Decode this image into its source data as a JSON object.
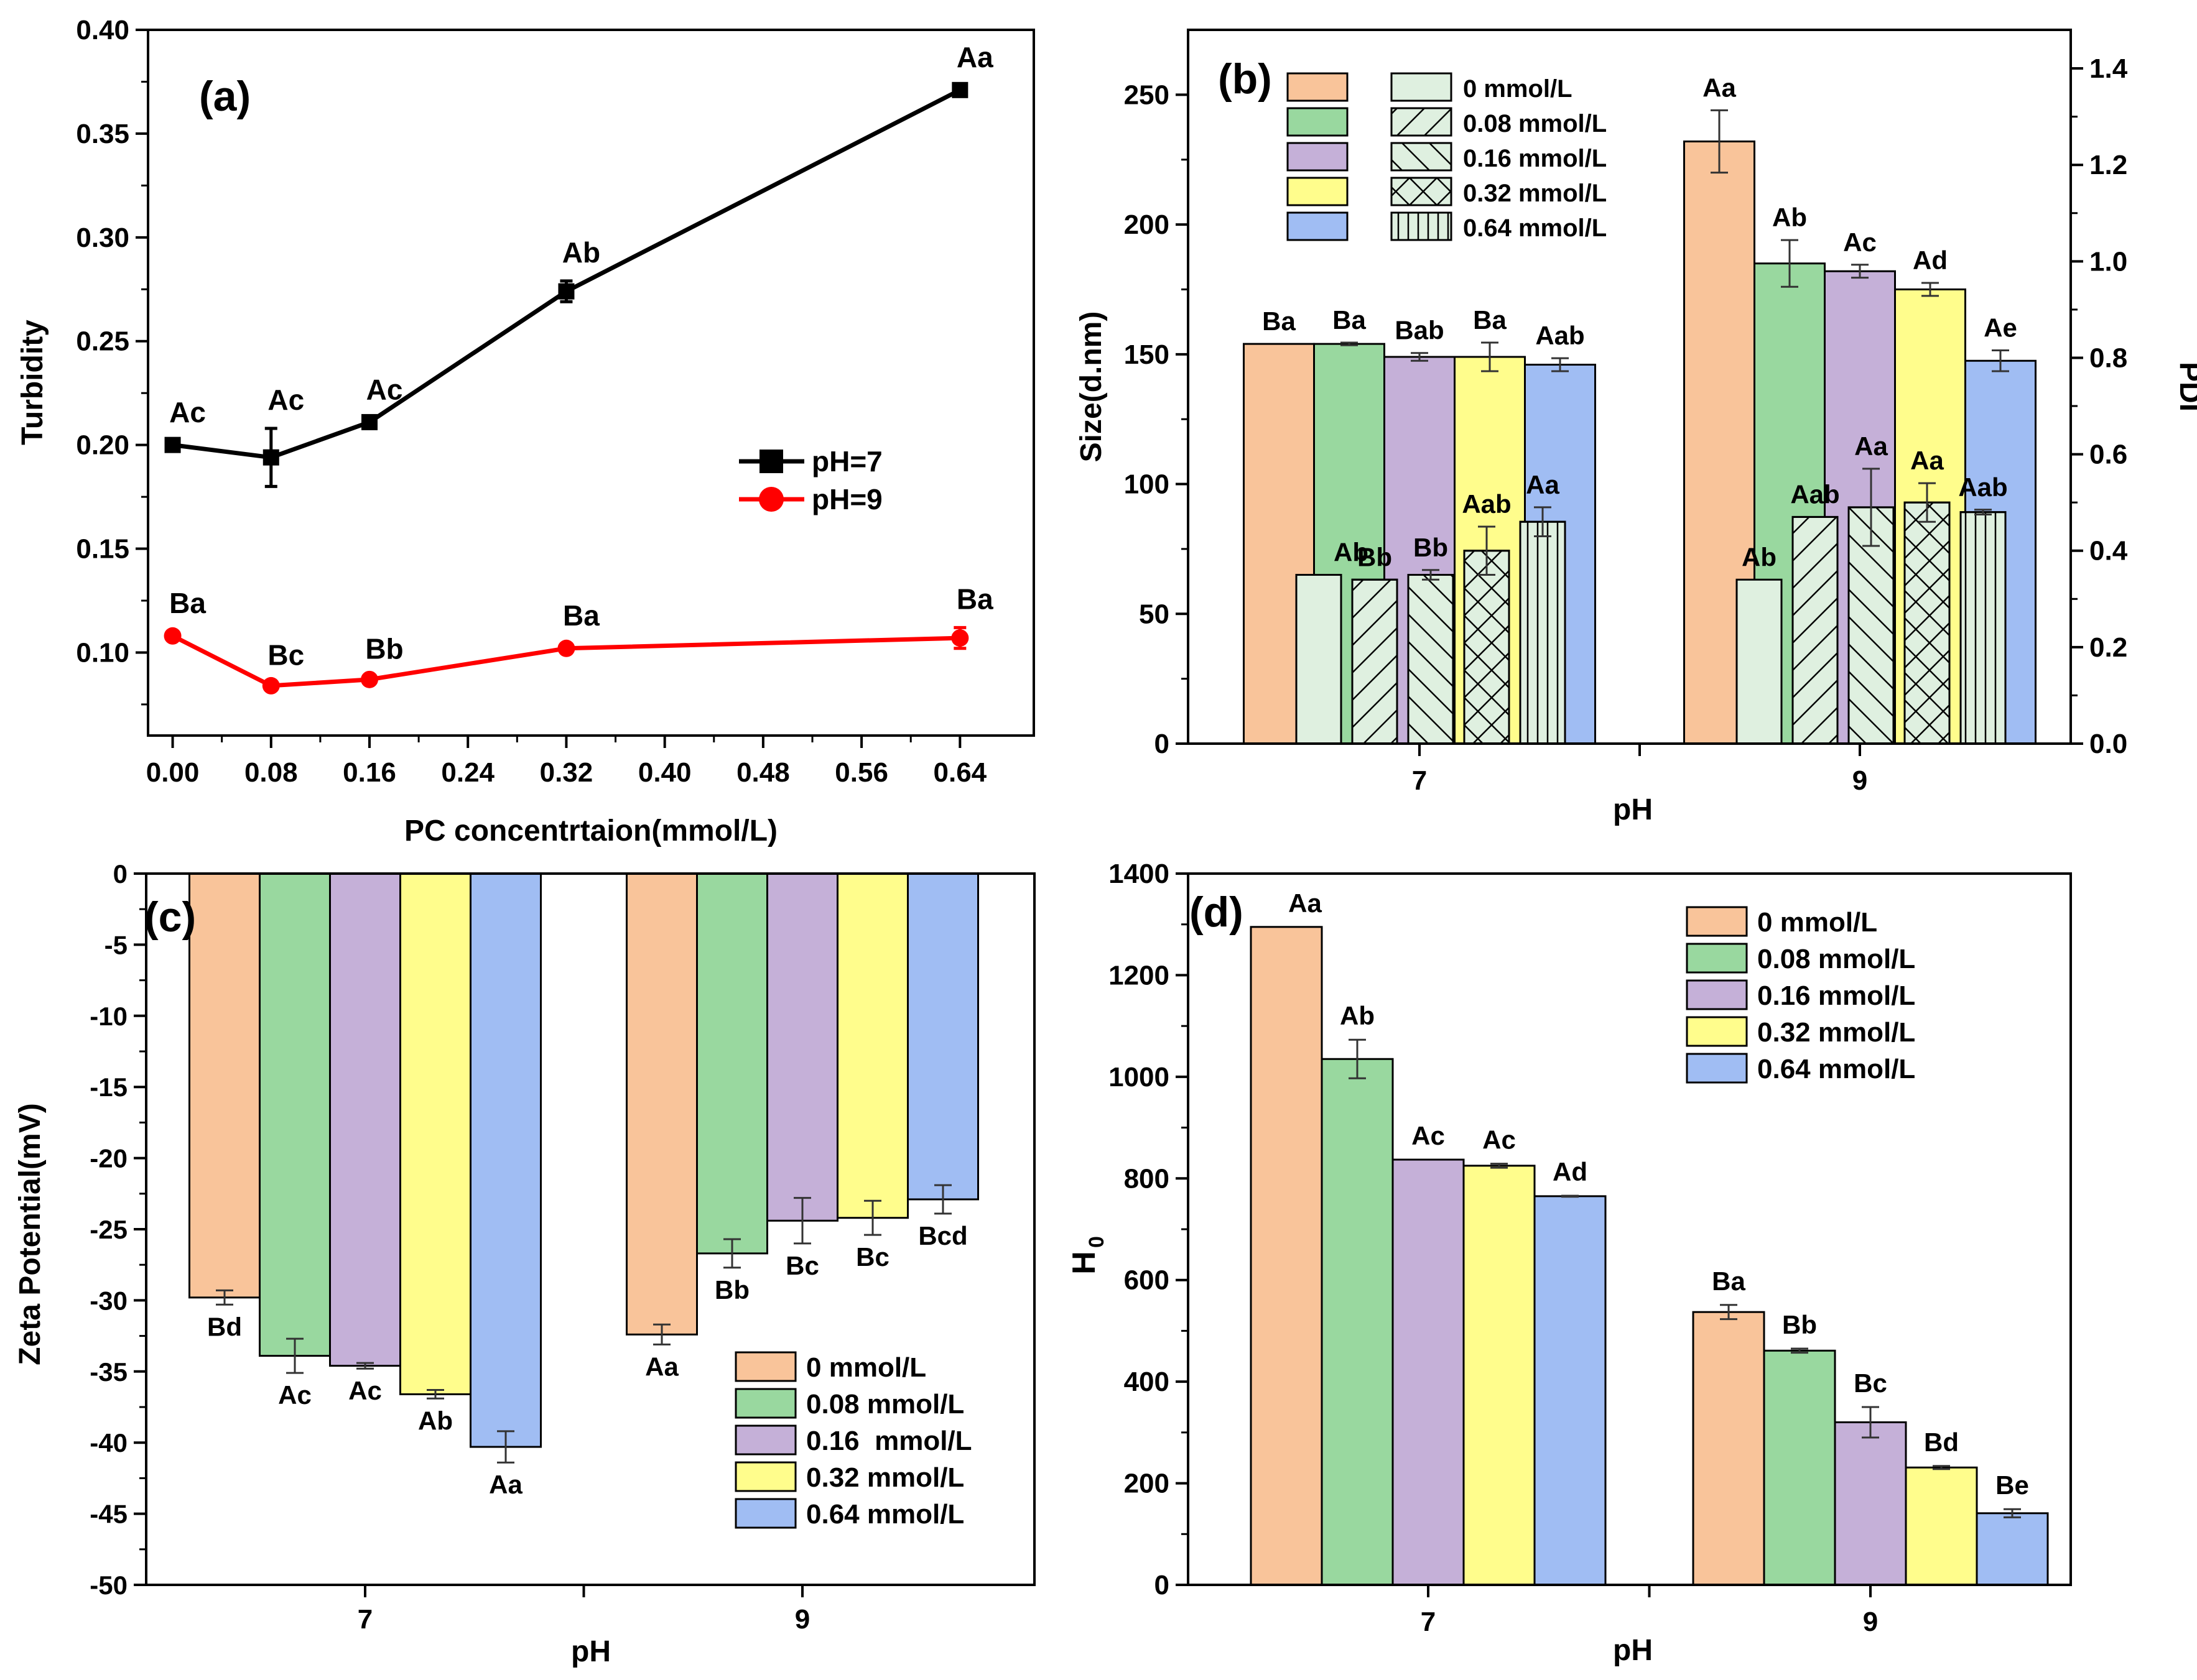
{
  "colors": {
    "axis": "#000000",
    "error": "#333333",
    "ph7_line": "#000000",
    "ph9_line": "#ff0000",
    "bar_0": "#f9c49a",
    "bar_008": "#99d89f",
    "bar_016": "#c5b0d8",
    "bar_032": "#fffd8c",
    "bar_064": "#a0bdf3",
    "pdi_fill": "#dff0e0"
  },
  "chart_data": [
    {
      "id": "a",
      "type": "line",
      "panel_label": "(a)",
      "xlabel": "PC concentrtaion(mmol/L)",
      "ylabel": "Turbidity",
      "xlim": [
        -0.02,
        0.7
      ],
      "ylim": [
        0.06,
        0.4
      ],
      "xticks": [
        "0.00",
        "0.08",
        "0.16",
        "0.24",
        "0.32",
        "0.40",
        "0.48",
        "0.56",
        "0.64"
      ],
      "yticks": [
        "0.10",
        "0.15",
        "0.20",
        "0.25",
        "0.30",
        "0.35",
        "0.40"
      ],
      "series": [
        {
          "name": "pH=7",
          "x": [
            0,
            0.08,
            0.16,
            0.32,
            0.64
          ],
          "values": [
            0.2,
            0.194,
            0.211,
            0.274,
            0.371
          ],
          "errors": [
            0.002,
            0.014,
            0.002,
            0.005,
            0.002
          ],
          "letters": [
            "Ac",
            "Ac",
            "Ac",
            "Ab",
            "Aa"
          ]
        },
        {
          "name": "pH=9",
          "x": [
            0,
            0.08,
            0.16,
            0.32,
            0.64
          ],
          "values": [
            0.108,
            0.084,
            0.087,
            0.102,
            0.107
          ],
          "errors": [
            0.002,
            0.001,
            0.001,
            0.002,
            0.005
          ],
          "letters": [
            "Ba",
            "Bc",
            "Bb",
            "Ba",
            "Ba"
          ]
        }
      ]
    },
    {
      "id": "b",
      "type": "bar",
      "panel_label": "(b)",
      "xlabel": "pH",
      "ylabel": "Size(d.nm)",
      "y2label": "PDI",
      "categories": [
        "7",
        "9"
      ],
      "ylim": [
        0,
        275
      ],
      "y2lim": [
        0,
        1.48
      ],
      "yticks": [
        "0",
        "50",
        "100",
        "150",
        "200",
        "250"
      ],
      "y2ticks": [
        "0.0",
        "0.2",
        "0.4",
        "0.6",
        "0.8",
        "1.0",
        "1.2",
        "1.4"
      ],
      "size_legend": [
        "",
        "",
        "",
        "",
        ""
      ],
      "pdi_legend": [
        "0 mmol/L",
        "0.08 mmol/L",
        "0.16 mmol/L",
        "0.32 mmol/L",
        "0.64 mmol/L"
      ],
      "series": [
        {
          "name": "0 mmol/L",
          "size": [
            154,
            232
          ],
          "size_err": [
            0,
            12
          ],
          "size_letters": [
            "Ba",
            "Aa"
          ],
          "pdi": [
            0.35,
            0.34
          ],
          "pdi_err": [
            0,
            0
          ],
          "pdi_letters": [
            "Ab",
            "Ab"
          ],
          "pattern": "none"
        },
        {
          "name": "0.08 mmol/L",
          "size": [
            154,
            185
          ],
          "size_err": [
            0.5,
            9
          ],
          "size_letters": [
            "Ba",
            "Ab"
          ],
          "pdi": [
            0.34,
            0.47
          ],
          "pdi_err": [
            0,
            0
          ],
          "pdi_letters": [
            "Bb",
            "Aab"
          ],
          "pattern": "diag"
        },
        {
          "name": "0.16 mmol/L",
          "size": [
            149,
            182
          ],
          "size_err": [
            1.5,
            2.5
          ],
          "size_letters": [
            "Bab",
            "Ac"
          ],
          "pdi": [
            0.35,
            0.49
          ],
          "pdi_err": [
            0.01,
            0.08
          ],
          "pdi_letters": [
            "Bb",
            "Aa"
          ],
          "pattern": "anti"
        },
        {
          "name": "0.32 mmol/L",
          "size": [
            149,
            175
          ],
          "size_err": [
            5.5,
            2.5
          ],
          "size_letters": [
            "Ba",
            "Ad"
          ],
          "pdi": [
            0.4,
            0.5
          ],
          "pdi_err": [
            0.05,
            0.04
          ],
          "pdi_letters": [
            "Aab",
            "Aa"
          ],
          "pattern": "cross"
        },
        {
          "name": "0.64 mmol/L",
          "size": [
            146,
            147.5
          ],
          "size_err": [
            2.5,
            4
          ],
          "size_letters": [
            "Aab",
            "Ae"
          ],
          "pdi": [
            0.46,
            0.48
          ],
          "pdi_err": [
            0.03,
            0.005
          ],
          "pdi_letters": [
            "Aa",
            "Aab"
          ],
          "pattern": "vert"
        }
      ]
    },
    {
      "id": "c",
      "type": "bar",
      "panel_label": "(c)",
      "xlabel": "pH",
      "ylabel": "Zeta Potential(mV)",
      "categories": [
        "7",
        "9"
      ],
      "ylim": [
        -50,
        0
      ],
      "yticks": [
        "0",
        "-5",
        "-10",
        "-15",
        "-20",
        "-25",
        "-30",
        "-35",
        "-40",
        "-45",
        "-50"
      ],
      "legend": [
        "0 mmol/L",
        "0.08 mmol/L",
        "0.16  mmol/L",
        "0.32 mmol/L",
        "0.64 mmol/L"
      ],
      "series": [
        {
          "name": "0 mmol/L",
          "values": [
            -29.8,
            -32.4
          ],
          "errors": [
            0.5,
            0.7
          ],
          "letters": [
            "Bd",
            "Aa"
          ]
        },
        {
          "name": "0.08 mmol/L",
          "values": [
            -33.9,
            -26.7
          ],
          "errors": [
            1.2,
            1.0
          ],
          "letters": [
            "Ac",
            "Bb"
          ]
        },
        {
          "name": "0.16 mmol/L",
          "values": [
            -34.6,
            -24.4
          ],
          "errors": [
            0.2,
            1.6
          ],
          "letters": [
            "Ac",
            "Bc"
          ]
        },
        {
          "name": "0.32 mmol/L",
          "values": [
            -36.6,
            -24.2
          ],
          "errors": [
            0.3,
            1.2
          ],
          "letters": [
            "Ab",
            "Bc"
          ]
        },
        {
          "name": "0.64 mmol/L",
          "values": [
            -40.3,
            -22.9
          ],
          "errors": [
            1.1,
            1.0
          ],
          "letters": [
            "Aa",
            "Bcd"
          ]
        }
      ]
    },
    {
      "id": "d",
      "type": "bar",
      "panel_label": "(d)",
      "xlabel": "pH",
      "ylabel": "H",
      "ylabel_sub": "0",
      "categories": [
        "7",
        "9"
      ],
      "ylim": [
        0,
        1400
      ],
      "yticks": [
        "0",
        "200",
        "400",
        "600",
        "800",
        "1000",
        "1200",
        "1400"
      ],
      "legend": [
        "0 mmol/L",
        "0.08 mmol/L",
        "0.16 mmol/L",
        "0.32 mmol/L",
        "0.64 mmol/L"
      ],
      "series": [
        {
          "name": "0 mmol/L",
          "values": [
            1295,
            537
          ],
          "errors": [
            0,
            14
          ],
          "letters": [
            "Aa",
            "Ba"
          ]
        },
        {
          "name": "0.08 mmol/L",
          "values": [
            1035,
            461
          ],
          "errors": [
            38,
            4
          ],
          "letters": [
            "Ab",
            "Bb"
          ]
        },
        {
          "name": "0.16 mmol/L",
          "values": [
            837,
            320
          ],
          "errors": [
            0,
            30
          ],
          "letters": [
            "Ac",
            "Bc"
          ]
        },
        {
          "name": "0.32 mmol/L",
          "values": [
            825,
            231
          ],
          "errors": [
            4,
            3
          ],
          "letters": [
            "Ac",
            "Bd"
          ]
        },
        {
          "name": "0.64 mmol/L",
          "values": [
            765,
            141
          ],
          "errors": [
            1,
            8
          ],
          "letters": [
            "Ad",
            "Be"
          ]
        }
      ]
    }
  ]
}
